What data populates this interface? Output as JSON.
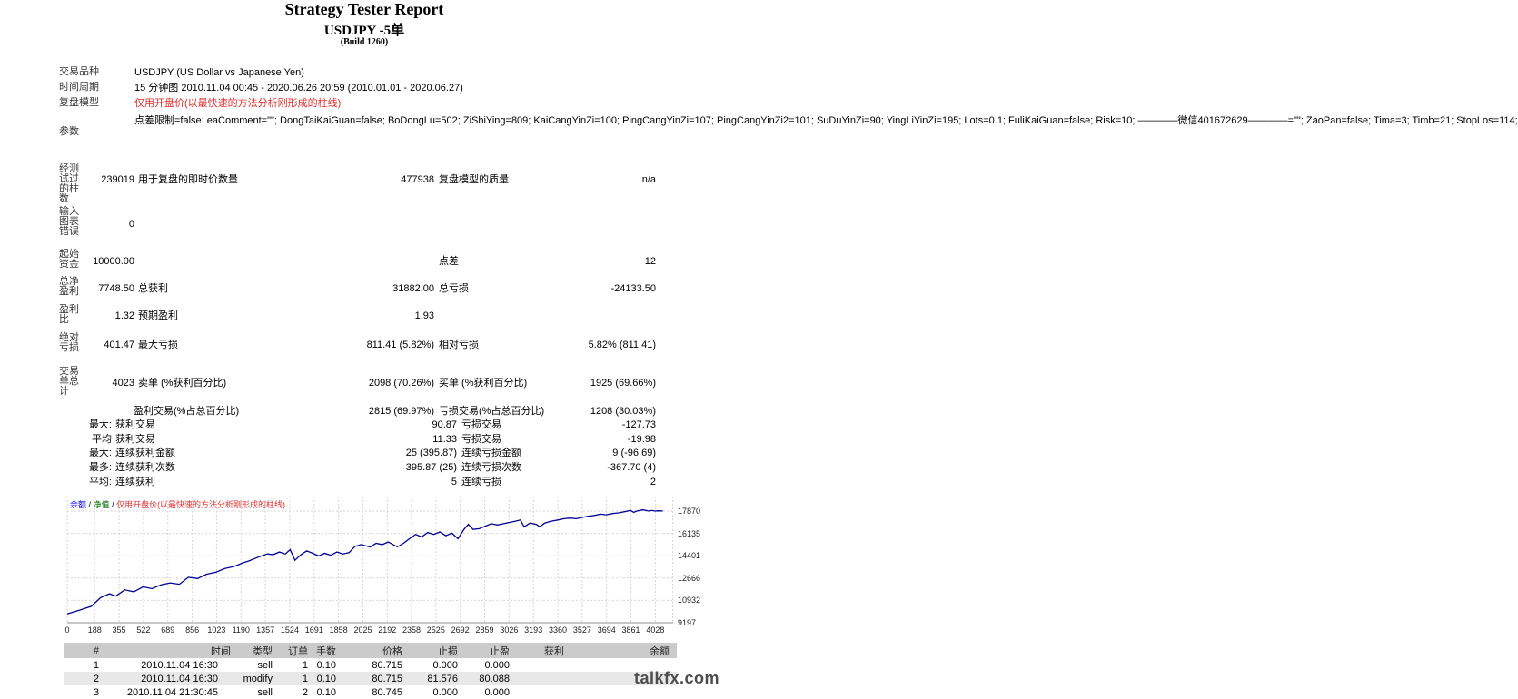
{
  "title": {
    "main": "Strategy Tester Report",
    "symbol": "USDJPY -5单",
    "build": "(Build 1260)"
  },
  "report": {
    "symbol_label": "交易品种",
    "symbol_value": "USDJPY (US Dollar vs Japanese Yen)",
    "period_label": "时间周期",
    "period_value": "15 分钟图 2010.11.04 00:45 - 2020.06.26 20:59 (2010.01.01 - 2020.06.27)",
    "model_label": "复盘模型",
    "model_value": "仅用开盘价(以最快速的方法分析刚形成的柱线)",
    "params_label": "参数",
    "params_value": "点差限制=false; eaComment=\"\"; DongTaiKaiGuan=false; BoDongLu=502; ZiShiYing=809; KaiCangYinZi=100; PingCangYinZi=107; PingCangYinZi2=101; SuDuYinZi=90; YingLiYinZi=195; Lots=0.1; FuliKaiGuan=false; Risk=10; ————微信401672629————=\"\"; ZaoPan=false; Tima=3; Timb=21; StopLos=114;",
    "bars_label": "经测\n试过\n的柱\n数",
    "bars_value": "239019",
    "ticks_label": "用于复盘的即时价数量",
    "ticks_value": "477938",
    "quality_label": "复盘模型的质量",
    "quality_value": "n/a",
    "errors_label": "输入\n图表\n错误",
    "errors_value": "0",
    "deposit_label": "起始\n资金",
    "deposit_value": "10000.00",
    "spread_label": "点差",
    "spread_value": "12",
    "netprofit_label": "总净\n盈利",
    "netprofit_value": "7748.50",
    "grossprofit_label": "总获利",
    "grossprofit_value": "31882.00",
    "grossloss_label": "总亏损",
    "grossloss_value": "-24133.50",
    "profitfactor_label": "盈利\n比",
    "profitfactor_value": "1.32",
    "expected_label": "预期盈利",
    "expected_value": "1.93",
    "absdd_label": "绝对\n亏损",
    "absdd_value": "401.47",
    "maxdd_label": "最大亏损",
    "maxdd_value": "811.41 (5.82%)",
    "reldd_label": "相对亏损",
    "reldd_value": "5.82% (811.41)",
    "total_label": "交易\n单总\n计",
    "total_value": "4023",
    "short_label": "卖单 (%获利百分比)",
    "short_value": "2098 (70.26%)",
    "long_label": "买单 (%获利百分比)",
    "long_value": "1925 (69.66%)",
    "profittrades_label": "盈利交易(%占总百分比)",
    "profittrades_value": "2815 (69.97%)",
    "losstrades_label": "亏损交易(%占总百分比)",
    "losstrades_value": "1208 (30.03%)",
    "largest_label": "最大:",
    "largest_profit_label": "获利交易",
    "largest_profit_value": "90.87",
    "largest_loss_label": "亏损交易",
    "largest_loss_value": "-127.73",
    "average_label": "平均",
    "avg_profit_label": "获利交易",
    "avg_profit_value": "11.33",
    "avg_loss_label": "亏损交易",
    "avg_loss_value": "-19.98",
    "maxcons_label": "最大:",
    "maxcons_profit_label": "连续获利金额",
    "maxcons_profit_value": "25 (395.87)",
    "maxcons_loss_label": "连续亏损金额",
    "maxcons_loss_value": "9 (-96.69)",
    "maxconsc_label": "最多:",
    "maxconsc_profit_label": "连续获利次数",
    "maxconsc_profit_value": "395.87 (25)",
    "maxconsc_loss_label": "连续亏损次数",
    "maxconsc_loss_value": "-367.70 (4)",
    "avgcons_label": "平均:",
    "avgcons_profit_label": "连续获利",
    "avgcons_profit_value": "5",
    "avgcons_loss_label": "连续亏损",
    "avgcons_loss_value": "2"
  },
  "colors": {
    "model_red": "#e03030",
    "curve_blue": "#000096",
    "legend_balance_blue": "#0000ff",
    "legend_equity_green": "#007000",
    "table_header_bg": "#cbcbcb",
    "table_alt_bg": "#e8e8e8",
    "watermark_gray": "#4d4d4d"
  },
  "chart_data": {
    "type": "line",
    "title": "",
    "xlabel": "",
    "ylabel": "",
    "legend": [
      {
        "label": "余额",
        "color": "#0000ff"
      },
      {
        "label": "净值",
        "color": "#007000"
      },
      {
        "label": "仅用开盘价(以最快速的方法分析刚形成的柱线)",
        "color": "#e03030"
      }
    ],
    "x_ticks": [
      0,
      188,
      355,
      522,
      689,
      856,
      1023,
      1190,
      1357,
      1524,
      1691,
      1858,
      2025,
      2192,
      2358,
      2525,
      2692,
      2859,
      3026,
      3193,
      3360,
      3527,
      3694,
      3861,
      4028
    ],
    "y_ticks": [
      17870,
      16135,
      14401,
      12666,
      10932,
      9197
    ],
    "x_range": [
      0,
      4150
    ],
    "y_plot_range": [
      9197,
      19000
    ],
    "grid": true,
    "legend_position": "top-left",
    "series": [
      {
        "name": "余额",
        "color": "#000096",
        "points": [
          [
            0,
            9880
          ],
          [
            85,
            10180
          ],
          [
            165,
            10470
          ],
          [
            230,
            11160
          ],
          [
            290,
            11450
          ],
          [
            332,
            11260
          ],
          [
            394,
            11750
          ],
          [
            456,
            11600
          ],
          [
            520,
            11990
          ],
          [
            580,
            11840
          ],
          [
            643,
            12140
          ],
          [
            705,
            12290
          ],
          [
            768,
            12190
          ],
          [
            830,
            12730
          ],
          [
            892,
            12630
          ],
          [
            955,
            12970
          ],
          [
            1017,
            13120
          ],
          [
            1080,
            13410
          ],
          [
            1141,
            13560
          ],
          [
            1204,
            13850
          ],
          [
            1245,
            14000
          ],
          [
            1307,
            14290
          ],
          [
            1370,
            14540
          ],
          [
            1411,
            14490
          ],
          [
            1453,
            14690
          ],
          [
            1494,
            14540
          ],
          [
            1527,
            14880
          ],
          [
            1560,
            14050
          ],
          [
            1598,
            14460
          ],
          [
            1640,
            14780
          ],
          [
            1681,
            14590
          ],
          [
            1722,
            14390
          ],
          [
            1764,
            14590
          ],
          [
            1805,
            14440
          ],
          [
            1847,
            14690
          ],
          [
            1888,
            14540
          ],
          [
            1930,
            14640
          ],
          [
            1971,
            15130
          ],
          [
            2013,
            15270
          ],
          [
            2075,
            15080
          ],
          [
            2116,
            15370
          ],
          [
            2158,
            15270
          ],
          [
            2199,
            15470
          ],
          [
            2261,
            15090
          ],
          [
            2303,
            15370
          ],
          [
            2344,
            15720
          ],
          [
            2386,
            16060
          ],
          [
            2427,
            15860
          ],
          [
            2469,
            16210
          ],
          [
            2510,
            16060
          ],
          [
            2552,
            16250
          ],
          [
            2593,
            15960
          ],
          [
            2635,
            16160
          ],
          [
            2676,
            15720
          ],
          [
            2718,
            16450
          ],
          [
            2747,
            16840
          ],
          [
            2780,
            16450
          ],
          [
            2822,
            16500
          ],
          [
            2863,
            16700
          ],
          [
            2905,
            16890
          ],
          [
            2946,
            16790
          ],
          [
            2988,
            16890
          ],
          [
            3029,
            16990
          ],
          [
            3071,
            17090
          ],
          [
            3104,
            17190
          ],
          [
            3129,
            16650
          ],
          [
            3170,
            16940
          ],
          [
            3212,
            16840
          ],
          [
            3237,
            16650
          ],
          [
            3270,
            16940
          ],
          [
            3311,
            17080
          ],
          [
            3361,
            17180
          ],
          [
            3403,
            17280
          ],
          [
            3444,
            17330
          ],
          [
            3486,
            17280
          ],
          [
            3527,
            17380
          ],
          [
            3569,
            17480
          ],
          [
            3610,
            17530
          ],
          [
            3652,
            17630
          ],
          [
            3693,
            17580
          ],
          [
            3735,
            17680
          ],
          [
            3776,
            17730
          ],
          [
            3818,
            17820
          ],
          [
            3859,
            17920
          ],
          [
            3880,
            17770
          ],
          [
            3901,
            17870
          ],
          [
            3942,
            17970
          ],
          [
            3984,
            17870
          ],
          [
            4005,
            17920
          ],
          [
            4026,
            17870
          ],
          [
            4047,
            17890
          ],
          [
            4080,
            17880
          ]
        ]
      }
    ]
  },
  "trades": {
    "headers": [
      "#",
      "时间",
      "类型",
      "订单",
      "手数",
      "价格",
      "止损",
      "止盈",
      "获利",
      "余额"
    ],
    "rows": [
      [
        "1",
        "2010.11.04 16:30",
        "sell",
        "1",
        "0.10",
        "80.715",
        "0.000",
        "0.000",
        "",
        ""
      ],
      [
        "2",
        "2010.11.04 16:30",
        "modify",
        "1",
        "0.10",
        "80.715",
        "81.576",
        "80.088",
        "",
        ""
      ],
      [
        "3",
        "2010.11.04 21:30:45",
        "sell",
        "2",
        "0.10",
        "80.745",
        "0.000",
        "0.000",
        "",
        ""
      ]
    ]
  },
  "watermark": "talkfx.com"
}
